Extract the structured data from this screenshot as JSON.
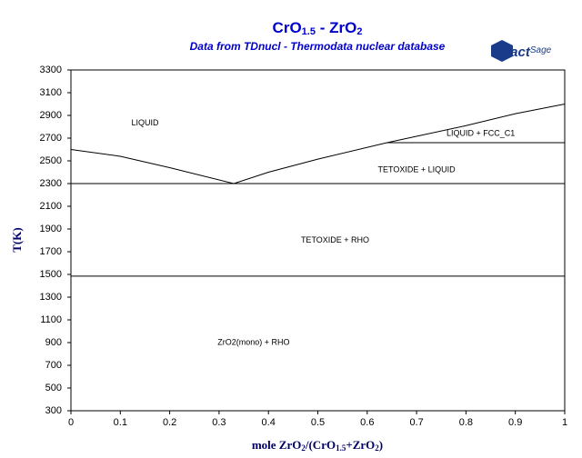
{
  "chart_data": {
    "type": "line",
    "title": [
      "CrO",
      "1.5",
      " - ZrO",
      "2"
    ],
    "subtitle": "Data from TDnucl - Thermodata nuclear database",
    "logo": [
      "Fact",
      "Sage"
    ],
    "x_label": [
      "mole ZrO",
      "2",
      "/(CrO",
      "1.5",
      "+ZrO",
      "2",
      ")"
    ],
    "y_label": "T(K)",
    "xlim": [
      0,
      1
    ],
    "ylim": [
      300,
      3300
    ],
    "xticks": [
      0,
      0.1,
      0.2,
      0.3,
      0.4,
      0.5,
      0.6,
      0.7,
      0.8,
      0.9,
      1
    ],
    "yticks": [
      300,
      500,
      700,
      900,
      1100,
      1300,
      1500,
      1700,
      1900,
      2100,
      2300,
      2500,
      2700,
      2900,
      3100,
      3300
    ],
    "series": [
      {
        "color": "#000000",
        "x": [
          0,
          0.1,
          0.2,
          0.33,
          0.4,
          0.5,
          0.64,
          0.8,
          0.9,
          1
        ],
        "values": [
          2600,
          2540,
          2440,
          2300,
          2400,
          2515,
          2660,
          2810,
          2915,
          3000
        ]
      },
      {
        "color": "#000000",
        "x": [
          0.64,
          1
        ],
        "values": [
          2660,
          2660
        ]
      },
      {
        "color": "#000000",
        "x": [
          0,
          1
        ],
        "values": [
          2300,
          2300
        ]
      },
      {
        "color": "#000000",
        "x": [
          0,
          1
        ],
        "values": [
          1485,
          1485
        ]
      }
    ],
    "annotations": [
      {
        "text": "LIQUID",
        "x": 0.15,
        "y": 2830
      },
      {
        "text": "LIQUID + FCC_C1",
        "x": 0.83,
        "y": 2740
      },
      {
        "text": "TETOXIDE + LIQUID",
        "x": 0.7,
        "y": 2420
      },
      {
        "text": "TETOXIDE + RHO",
        "x": 0.535,
        "y": 1800
      },
      {
        "text": "ZrO2(mono) + RHO",
        "x": 0.37,
        "y": 900
      }
    ]
  }
}
